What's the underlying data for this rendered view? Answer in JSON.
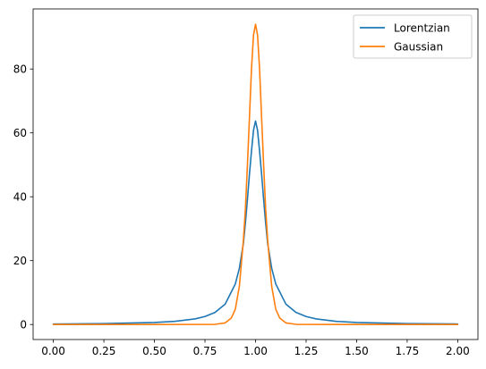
{
  "chart_data": {
    "type": "line",
    "title": "",
    "xlabel": "",
    "ylabel": "",
    "xlim": [
      -0.1,
      2.1
    ],
    "ylim": [
      -4.7,
      98.8
    ],
    "grid": false,
    "legend": {
      "placement": "top-right"
    },
    "x_ticks": [
      {
        "value": 0.0,
        "label": "0.00"
      },
      {
        "value": 0.25,
        "label": "0.25"
      },
      {
        "value": 0.5,
        "label": "0.50"
      },
      {
        "value": 0.75,
        "label": "0.75"
      },
      {
        "value": 1.0,
        "label": "1.00"
      },
      {
        "value": 1.25,
        "label": "1.25"
      },
      {
        "value": 1.5,
        "label": "1.50"
      },
      {
        "value": 1.75,
        "label": "1.75"
      },
      {
        "value": 2.0,
        "label": "2.00"
      }
    ],
    "y_ticks": [
      {
        "value": 0,
        "label": "0"
      },
      {
        "value": 20,
        "label": "20"
      },
      {
        "value": 40,
        "label": "40"
      },
      {
        "value": 60,
        "label": "60"
      },
      {
        "value": 80,
        "label": "80"
      }
    ],
    "series": [
      {
        "name": "Lorentzian",
        "color": "#1f77b4",
        "x": [
          0.0,
          0.25,
          0.5,
          0.6,
          0.7,
          0.75,
          0.8,
          0.85,
          0.9,
          0.92,
          0.94,
          0.95,
          0.96,
          0.97,
          0.98,
          0.99,
          1.0,
          1.01,
          1.02,
          1.03,
          1.04,
          1.05,
          1.06,
          1.08,
          1.1,
          1.15,
          1.2,
          1.25,
          1.3,
          1.4,
          1.5,
          1.75,
          2.0
        ],
        "y": [
          0.16,
          0.28,
          0.63,
          0.99,
          1.75,
          2.5,
          3.8,
          6.4,
          12.7,
          17.6,
          25.4,
          31.8,
          39.2,
          47.1,
          54.3,
          60.8,
          63.7,
          60.8,
          54.3,
          47.1,
          39.2,
          31.8,
          25.4,
          17.6,
          12.7,
          6.4,
          3.8,
          2.5,
          1.75,
          0.99,
          0.63,
          0.28,
          0.16
        ]
      },
      {
        "name": "Gaussian",
        "color": "#ff7f0e",
        "x": [
          0.0,
          0.5,
          0.8,
          0.85,
          0.88,
          0.9,
          0.92,
          0.94,
          0.95,
          0.96,
          0.97,
          0.98,
          0.99,
          1.0,
          1.01,
          1.02,
          1.03,
          1.04,
          1.05,
          1.06,
          1.08,
          1.1,
          1.12,
          1.15,
          1.2,
          1.5,
          2.0
        ],
        "y": [
          0.0,
          0.0,
          0.05,
          0.5,
          2.0,
          4.8,
          11.9,
          26.4,
          36.3,
          50.0,
          64.8,
          80.0,
          90.6,
          94.0,
          90.6,
          80.0,
          64.8,
          50.0,
          36.3,
          26.4,
          11.9,
          4.8,
          2.0,
          0.5,
          0.05,
          0.0,
          0.0
        ]
      }
    ]
  }
}
